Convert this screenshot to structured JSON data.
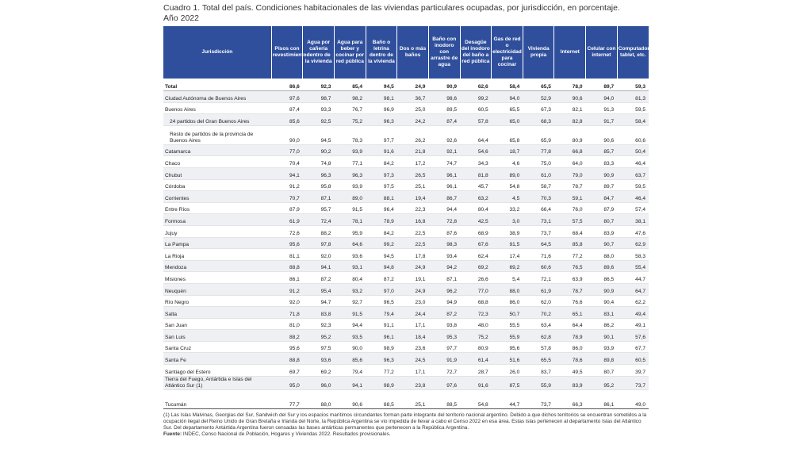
{
  "title_line1": "Cuadro 1. Total del país. Condiciones habitacionales de las viviendas particulares ocupadas, por jurisdicción, en porcentaje.",
  "title_line2": "Año 2022",
  "headers": [
    "Jurisdicción",
    "Pisos con revestimiento",
    "Agua por cañería dentro de la vivienda",
    "Agua para beber y cocinar por red pública",
    "Baño o letrina dentro de la vivienda",
    "Dos o más baños",
    "Baño con inodoro con arrastre de agua",
    "Desagüe del inodoro del baño a red pública",
    "Gas de red o electricidad para cocinar",
    "Vivienda propia",
    "Internet",
    "Celular con internet",
    "Computadora, tablet, etc."
  ],
  "rows": [
    {
      "name": "Total",
      "v": [
        "86,6",
        "92,3",
        "85,4",
        "94,5",
        "24,9",
        "90,9",
        "62,6",
        "58,4",
        "65,5",
        "78,0",
        "89,7",
        "59,3"
      ]
    },
    {
      "name": "Ciudad Autónoma de Buenos Aires",
      "v": [
        "97,6",
        "98,7",
        "98,2",
        "98,1",
        "36,7",
        "98,6",
        "99,2",
        "94,0",
        "52,9",
        "90,6",
        "94,0",
        "81,3"
      ]
    },
    {
      "name": "Buenos Aires",
      "v": [
        "87,4",
        "93,3",
        "76,7",
        "96,9",
        "25,0",
        "89,5",
        "60,5",
        "65,5",
        "67,3",
        "82,1",
        "91,3",
        "59,5"
      ]
    },
    {
      "name": "24 partidos del Gran Buenos Aires",
      "v": [
        "85,6",
        "92,5",
        "75,2",
        "96,3",
        "24,2",
        "87,4",
        "57,8",
        "65,0",
        "68,3",
        "82,8",
        "91,7",
        "58,4"
      ]
    },
    {
      "name": "Resto de partidos de la provincia de Buenos Aires",
      "v": [
        "90,0",
        "94,5",
        "78,3",
        "97,7",
        "26,2",
        "92,6",
        "64,4",
        "65,8",
        "65,9",
        "80,9",
        "90,6",
        "60,6"
      ]
    },
    {
      "name": "Catamarca",
      "v": [
        "77,0",
        "90,2",
        "93,9",
        "91,6",
        "21,8",
        "92,1",
        "54,6",
        "18,7",
        "77,8",
        "66,8",
        "85,7",
        "50,4"
      ]
    },
    {
      "name": "Chaco",
      "v": [
        "70,4",
        "74,8",
        "77,1",
        "84,2",
        "17,2",
        "74,7",
        "34,3",
        "4,6",
        "75,0",
        "64,0",
        "83,3",
        "46,4"
      ]
    },
    {
      "name": "Chubut",
      "v": [
        "94,1",
        "96,3",
        "96,3",
        "97,3",
        "26,5",
        "96,1",
        "81,8",
        "89,0",
        "61,0",
        "79,0",
        "90,9",
        "63,7"
      ]
    },
    {
      "name": "Córdoba",
      "v": [
        "91,2",
        "95,8",
        "93,9",
        "97,5",
        "25,1",
        "96,1",
        "45,7",
        "54,8",
        "58,7",
        "78,7",
        "89,7",
        "59,5"
      ]
    },
    {
      "name": "Corrientes",
      "v": [
        "70,7",
        "87,1",
        "89,0",
        "88,1",
        "19,4",
        "86,7",
        "63,2",
        "4,5",
        "70,3",
        "59,1",
        "84,7",
        "46,4"
      ]
    },
    {
      "name": "Entre Ríos",
      "v": [
        "87,9",
        "95,7",
        "91,5",
        "96,4",
        "22,3",
        "94,4",
        "80,4",
        "33,2",
        "66,4",
        "76,0",
        "87,9",
        "57,4"
      ]
    },
    {
      "name": "Formosa",
      "v": [
        "61,9",
        "72,4",
        "78,1",
        "78,9",
        "16,8",
        "72,8",
        "42,5",
        "3,0",
        "73,1",
        "57,5",
        "80,7",
        "38,1"
      ]
    },
    {
      "name": "Jujuy",
      "v": [
        "72,6",
        "88,2",
        "95,9",
        "84,2",
        "22,5",
        "87,6",
        "68,9",
        "38,9",
        "73,7",
        "68,4",
        "83,9",
        "47,6"
      ]
    },
    {
      "name": "La Pampa",
      "v": [
        "95,6",
        "97,8",
        "64,6",
        "99,2",
        "22,5",
        "98,3",
        "67,6",
        "91,5",
        "64,5",
        "85,8",
        "90,7",
        "62,9"
      ]
    },
    {
      "name": "La Rioja",
      "v": [
        "81,1",
        "92,0",
        "93,6",
        "94,5",
        "17,8",
        "93,4",
        "62,4",
        "17,4",
        "71,6",
        "77,2",
        "88,0",
        "58,3"
      ]
    },
    {
      "name": "Mendoza",
      "v": [
        "88,8",
        "94,1",
        "93,1",
        "94,8",
        "24,9",
        "94,2",
        "69,2",
        "69,2",
        "60,6",
        "76,5",
        "89,6",
        "55,4"
      ]
    },
    {
      "name": "Misiones",
      "v": [
        "86,1",
        "87,2",
        "80,4",
        "87,2",
        "19,1",
        "87,1",
        "26,6",
        "5,4",
        "72,1",
        "63,9",
        "86,5",
        "44,7"
      ]
    },
    {
      "name": "Neuquén",
      "v": [
        "91,2",
        "95,4",
        "93,2",
        "97,0",
        "24,9",
        "96,2",
        "77,0",
        "88,0",
        "61,9",
        "78,7",
        "90,9",
        "64,7"
      ]
    },
    {
      "name": "Río Negro",
      "v": [
        "92,0",
        "94,7",
        "92,7",
        "96,5",
        "23,0",
        "94,9",
        "68,8",
        "86,0",
        "62,0",
        "76,6",
        "90,4",
        "62,2"
      ]
    },
    {
      "name": "Salta",
      "v": [
        "71,8",
        "83,8",
        "91,5",
        "79,4",
        "24,4",
        "87,2",
        "72,3",
        "50,7",
        "70,2",
        "65,1",
        "83,1",
        "49,4"
      ]
    },
    {
      "name": "San Juan",
      "v": [
        "81,0",
        "92,3",
        "94,4",
        "91,1",
        "17,1",
        "93,8",
        "48,0",
        "55,5",
        "63,4",
        "64,4",
        "86,2",
        "49,1"
      ]
    },
    {
      "name": "San Luis",
      "v": [
        "88,2",
        "95,2",
        "93,5",
        "96,1",
        "18,4",
        "95,3",
        "75,2",
        "55,9",
        "62,8",
        "78,9",
        "90,1",
        "57,6"
      ]
    },
    {
      "name": "Santa Cruz",
      "v": [
        "95,6",
        "97,5",
        "90,0",
        "98,9",
        "23,6",
        "97,7",
        "80,9",
        "95,6",
        "57,8",
        "86,0",
        "93,9",
        "67,7"
      ]
    },
    {
      "name": "Santa Fe",
      "v": [
        "88,8",
        "93,6",
        "85,6",
        "96,3",
        "24,5",
        "91,9",
        "61,4",
        "51,6",
        "65,5",
        "78,6",
        "89,8",
        "60,5"
      ]
    },
    {
      "name": "Santiago del Estero",
      "v": [
        "69,7",
        "69,2",
        "79,4",
        "77,2",
        "17,1",
        "72,7",
        "28,7",
        "26,0",
        "83,7",
        "49,5",
        "80,7",
        "39,7"
      ]
    },
    {
      "name": "Tierra del Fuego, Antártida e Islas del Atlántico Sur (1)",
      "v": [
        "95,0",
        "96,0",
        "94,1",
        "98,9",
        "23,8",
        "97,6",
        "91,6",
        "87,5",
        "55,9",
        "83,9",
        "95,2",
        "73,7"
      ]
    },
    {
      "name": "Tucumán",
      "v": [
        "77,7",
        "88,0",
        "90,6",
        "88,5",
        "25,1",
        "88,5",
        "54,8",
        "44,7",
        "73,7",
        "66,3",
        "86,1",
        "49,0"
      ]
    }
  ],
  "footnote": "(1) Las Islas Malvinas, Georgias del Sur, Sandwich del Sur y los espacios marítimos circundantes forman parte integrante del territorio nacional argentino. Debido a que dichos territorios se encuentran sometidos a la ocupación ilegal del Reino Unido de Gran Bretaña e Irlanda del Norte, la República Argentina se vio impedida de llevar a cabo el Censo 2022 en esa área. Estas islas pertenecen al departamento Islas del Atlántico Sur. Del departamento Antártida Argentina fueron censadas las bases antárticas permanentes que pertenecen a la República Argentina.",
  "source_label": "Fuente:",
  "source_text": "INDEC, Censo Nacional de Población, Hogares y Viviendas 2022. Resultados provisionales."
}
